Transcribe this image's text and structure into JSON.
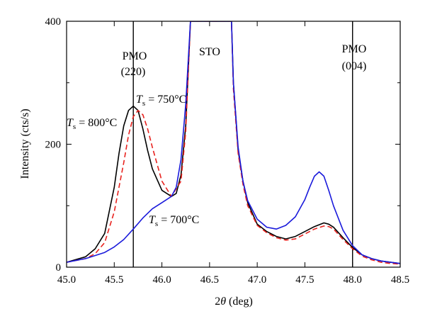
{
  "chart_data": {
    "type": "line",
    "xlabel_prefix": "2",
    "xlabel_symbol": "θ",
    "xlabel_suffix": " (deg)",
    "ylabel": "Intensity (cts/s)",
    "xlim": [
      45.0,
      48.5
    ],
    "ylim": [
      0,
      400
    ],
    "xticks": [
      45.0,
      45.5,
      46.0,
      46.5,
      47.0,
      47.5,
      48.0,
      48.5
    ],
    "xtick_labels": [
      "45.0",
      "45.5",
      "46.0",
      "46.5",
      "47.0",
      "47.5",
      "48.0",
      "48.5"
    ],
    "yticks": [
      0,
      200,
      400
    ],
    "ytick_labels": [
      "0",
      "200",
      "400"
    ],
    "grid": false,
    "reference_lines": [
      {
        "x": 45.7,
        "label_line1": "PMO",
        "label_line2": "(220)"
      },
      {
        "x": 48.0,
        "label_line1": "PMO",
        "label_line2": "(004)"
      }
    ],
    "peak_label": "STO",
    "series": [
      {
        "label_italic": "T",
        "label_sub": "s",
        "label_rest": " = 800°C",
        "color": "#000000",
        "dash": "solid",
        "x": [
          45.0,
          45.2,
          45.3,
          45.4,
          45.5,
          45.55,
          45.6,
          45.65,
          45.7,
          45.75,
          45.8,
          45.85,
          45.9,
          46.0,
          46.1,
          46.15,
          46.2,
          46.25,
          46.3,
          46.73,
          46.75,
          46.8,
          46.85,
          46.9,
          47.0,
          47.1,
          47.2,
          47.3,
          47.4,
          47.5,
          47.6,
          47.7,
          47.75,
          47.8,
          47.9,
          48.0,
          48.1,
          48.2,
          48.3,
          48.4,
          48.5
        ],
        "y": [
          8,
          17,
          30,
          55,
          130,
          185,
          230,
          255,
          262,
          255,
          225,
          190,
          160,
          125,
          115,
          120,
          150,
          230,
          400,
          400,
          300,
          190,
          140,
          105,
          70,
          58,
          50,
          46,
          50,
          58,
          66,
          72,
          70,
          65,
          48,
          32,
          20,
          14,
          10,
          8,
          6
        ]
      },
      {
        "label_italic": "T",
        "label_sub": "s",
        "label_rest": " = 750°C",
        "color": "#e8231f",
        "dash": "dashed",
        "x": [
          45.0,
          45.2,
          45.3,
          45.4,
          45.5,
          45.6,
          45.65,
          45.7,
          45.75,
          45.8,
          45.85,
          45.9,
          46.0,
          46.1,
          46.2,
          46.25,
          46.3,
          46.73,
          46.75,
          46.8,
          46.85,
          46.9,
          47.0,
          47.1,
          47.2,
          47.3,
          47.4,
          47.5,
          47.6,
          47.7,
          47.75,
          47.8,
          47.9,
          48.0,
          48.1,
          48.2,
          48.3,
          48.4,
          48.5
        ],
        "y": [
          8,
          14,
          22,
          40,
          90,
          170,
          215,
          245,
          255,
          248,
          225,
          195,
          140,
          115,
          140,
          220,
          400,
          400,
          290,
          185,
          135,
          100,
          68,
          56,
          48,
          44,
          46,
          54,
          62,
          67,
          66,
          62,
          45,
          30,
          18,
          12,
          8,
          6,
          5
        ]
      },
      {
        "label_italic": "T",
        "label_sub": "s",
        "label_rest": " = 700°C",
        "color": "#1a1adb",
        "dash": "solid",
        "x": [
          45.0,
          45.2,
          45.4,
          45.5,
          45.6,
          45.7,
          45.8,
          45.9,
          46.0,
          46.1,
          46.15,
          46.2,
          46.25,
          46.3,
          46.73,
          46.75,
          46.8,
          46.85,
          46.9,
          47.0,
          47.1,
          47.2,
          47.3,
          47.4,
          47.5,
          47.55,
          47.6,
          47.65,
          47.7,
          47.75,
          47.8,
          47.9,
          48.0,
          48.1,
          48.2,
          48.3,
          48.4,
          48.5
        ],
        "y": [
          8,
          14,
          24,
          33,
          45,
          62,
          80,
          95,
          105,
          115,
          130,
          175,
          265,
          400,
          400,
          300,
          195,
          140,
          108,
          78,
          65,
          62,
          68,
          82,
          110,
          130,
          148,
          155,
          148,
          125,
          100,
          60,
          35,
          20,
          14,
          10,
          8,
          6
        ]
      }
    ]
  }
}
